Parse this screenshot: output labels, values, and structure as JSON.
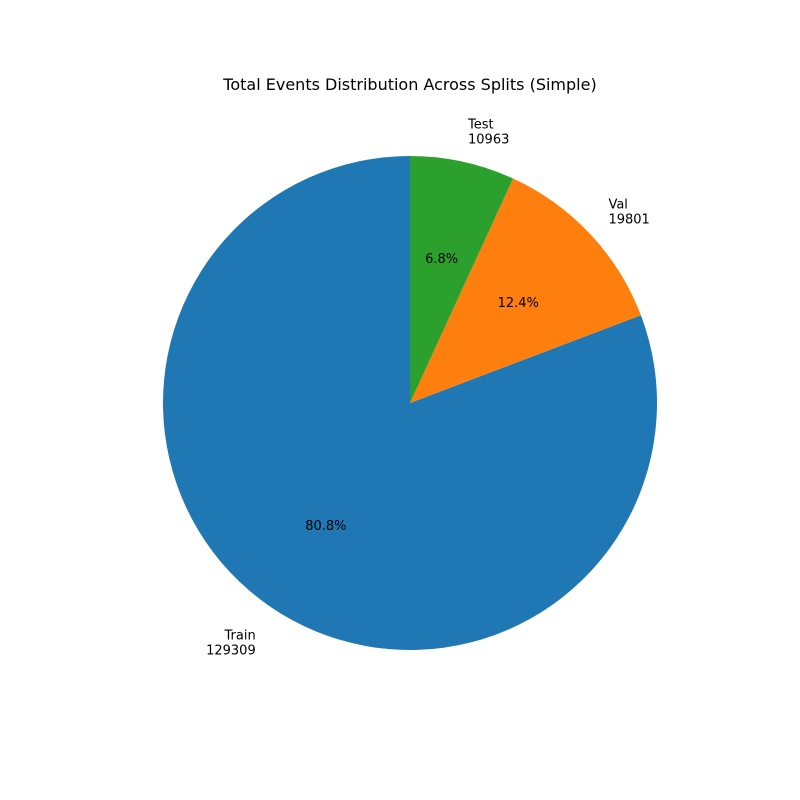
{
  "chart_data": {
    "type": "pie",
    "title": "Total Events Distribution Across Splits (Simple)",
    "start_angle_deg": 90,
    "direction": "counterclockwise",
    "slices": [
      {
        "label": "Train",
        "value": 129309,
        "percent_label": "80.8%",
        "color": "#1f77b4"
      },
      {
        "label": "Val",
        "value": 19801,
        "percent_label": "12.4%",
        "color": "#ff7f0e"
      },
      {
        "label": "Test",
        "value": 10963,
        "percent_label": "6.8%",
        "color": "#2ca02c"
      }
    ]
  }
}
